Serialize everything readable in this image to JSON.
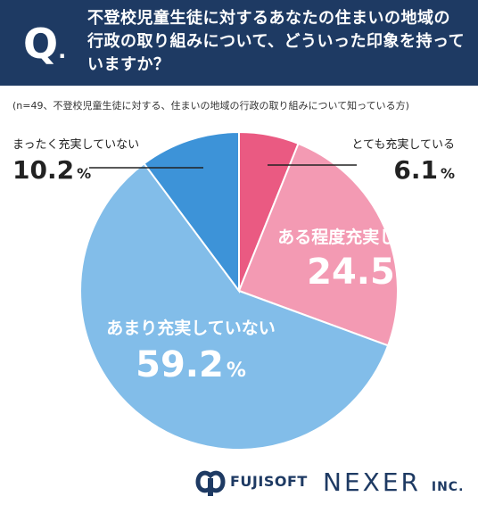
{
  "header": {
    "q_letter": "Q",
    "q_dot": ".",
    "question_line1": "不登校児童生徒に対するあなたの住まいの地域の",
    "question_line2": "行政の取り組みについて、どういった印象を持って",
    "question_line3": "いますか？"
  },
  "note": "(n=49、不登校児童生徒に対する、住まいの地域の行政の取り組みについて知っている方)",
  "colors": {
    "header_bg": "#1e3a63",
    "slice_very": "#ea5a82",
    "slice_some": "#f39ab3",
    "slice_not_much": "#82bde9",
    "slice_not_at_all": "#3d93d8",
    "label_pink": "#f39ab3",
    "text_dark": "#222222"
  },
  "chart_data": {
    "type": "pie",
    "start": "12 o'clock, clockwise",
    "slices": [
      {
        "label": "とても充実している",
        "value": 6.1,
        "value_text": "6.1",
        "unit": "%",
        "color": "#ea5a82"
      },
      {
        "label": "ある程度充実している",
        "value": 24.5,
        "value_text": "24.5",
        "unit": "%",
        "color": "#f39ab3"
      },
      {
        "label": "あまり充実していない",
        "value": 59.2,
        "value_text": "59.2",
        "unit": "%",
        "color": "#82bde9"
      },
      {
        "label": "まったく充実していない",
        "value": 10.2,
        "value_text": "10.2",
        "unit": "%",
        "color": "#3d93d8"
      }
    ]
  },
  "logos": {
    "fujisoft": "FUJISOFT",
    "nexer": "NEXER",
    "nexer_inc": "INC."
  }
}
